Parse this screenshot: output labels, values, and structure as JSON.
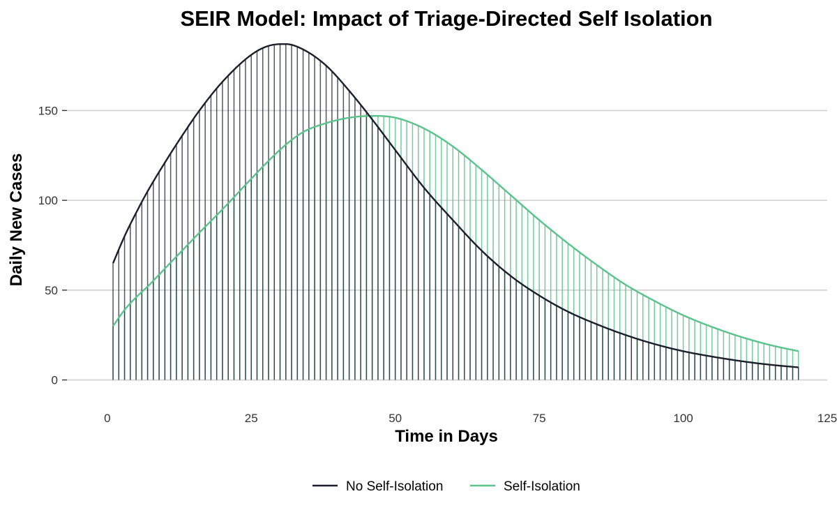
{
  "chart_data": {
    "type": "area",
    "title": "SEIR Model: Impact of Triage-Directed Self Isolation",
    "xlabel": "Time in Days",
    "ylabel": "Daily New Cases",
    "xlim": [
      -7,
      125
    ],
    "ylim": [
      -6,
      189
    ],
    "x_ticks": [
      0,
      25,
      50,
      75,
      100,
      125
    ],
    "y_ticks": [
      0,
      50,
      100,
      150
    ],
    "grid": "horizontal major",
    "legend_position": "bottom",
    "x": [
      1,
      3,
      5,
      7,
      10,
      13,
      16,
      20,
      25,
      28,
      31,
      34,
      38,
      42,
      46,
      50,
      55,
      60,
      65,
      70,
      75,
      80,
      85,
      90,
      95,
      100,
      105,
      110,
      115,
      120
    ],
    "series": [
      {
        "name": "No Self-Isolation",
        "color": "#1a1f2b",
        "values": [
          65,
          80,
          93,
          105,
          121,
          136,
          150,
          166,
          181,
          186,
          187,
          184,
          175,
          161,
          145,
          128,
          107,
          89,
          72,
          58,
          47,
          38,
          31,
          25,
          20,
          16,
          13,
          10.5,
          8.5,
          7
        ]
      },
      {
        "name": "Self-Isolation",
        "color": "#5cc28b",
        "values": [
          30,
          39,
          46,
          52,
          62,
          72,
          82,
          95,
          112,
          122,
          131,
          138,
          143,
          146,
          147,
          146,
          140,
          130,
          117,
          103,
          89,
          76,
          64,
          53,
          44,
          36,
          29.5,
          24,
          19.5,
          16
        ]
      }
    ]
  }
}
